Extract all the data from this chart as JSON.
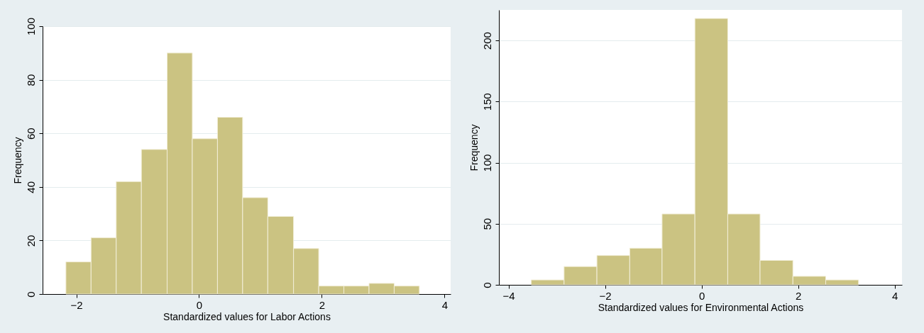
{
  "chart_data": [
    {
      "type": "histogram",
      "xlabel": "Standardized values for Labor Actions",
      "ylabel": "Frequency",
      "color": "#cbc382",
      "bins": [
        -2.17,
        -1.76,
        -1.35,
        -0.94,
        -0.52,
        -0.11,
        0.3,
        0.71,
        1.12,
        1.54,
        1.95,
        2.36,
        2.77,
        3.18,
        3.59
      ],
      "values": [
        12,
        21,
        42,
        54,
        90,
        58,
        66,
        36,
        29,
        17,
        3,
        3,
        4,
        3
      ],
      "xlim": [
        -2.55,
        4.1
      ],
      "xticks": [
        -2,
        0,
        2,
        4
      ],
      "ylim": [
        0,
        100
      ],
      "yticks": [
        0,
        20,
        40,
        60,
        80,
        100
      ],
      "grid": "y"
    },
    {
      "type": "histogram",
      "xlabel": "Standardized values for Environmental Actions",
      "ylabel": "Frequency",
      "color": "#cbc382",
      "bins": [
        -3.53,
        -2.85,
        -2.17,
        -1.49,
        -0.82,
        -0.14,
        0.54,
        1.21,
        1.89,
        2.57,
        3.25
      ],
      "values": [
        4,
        15,
        24,
        30,
        58,
        218,
        58,
        20,
        7,
        4
      ],
      "xlim": [
        -4.2,
        4.15
      ],
      "xticks": [
        -4,
        -2,
        0,
        2,
        4
      ],
      "ylim": [
        0,
        225
      ],
      "yticks": [
        0,
        50,
        100,
        150,
        200
      ],
      "grid": "y"
    }
  ]
}
